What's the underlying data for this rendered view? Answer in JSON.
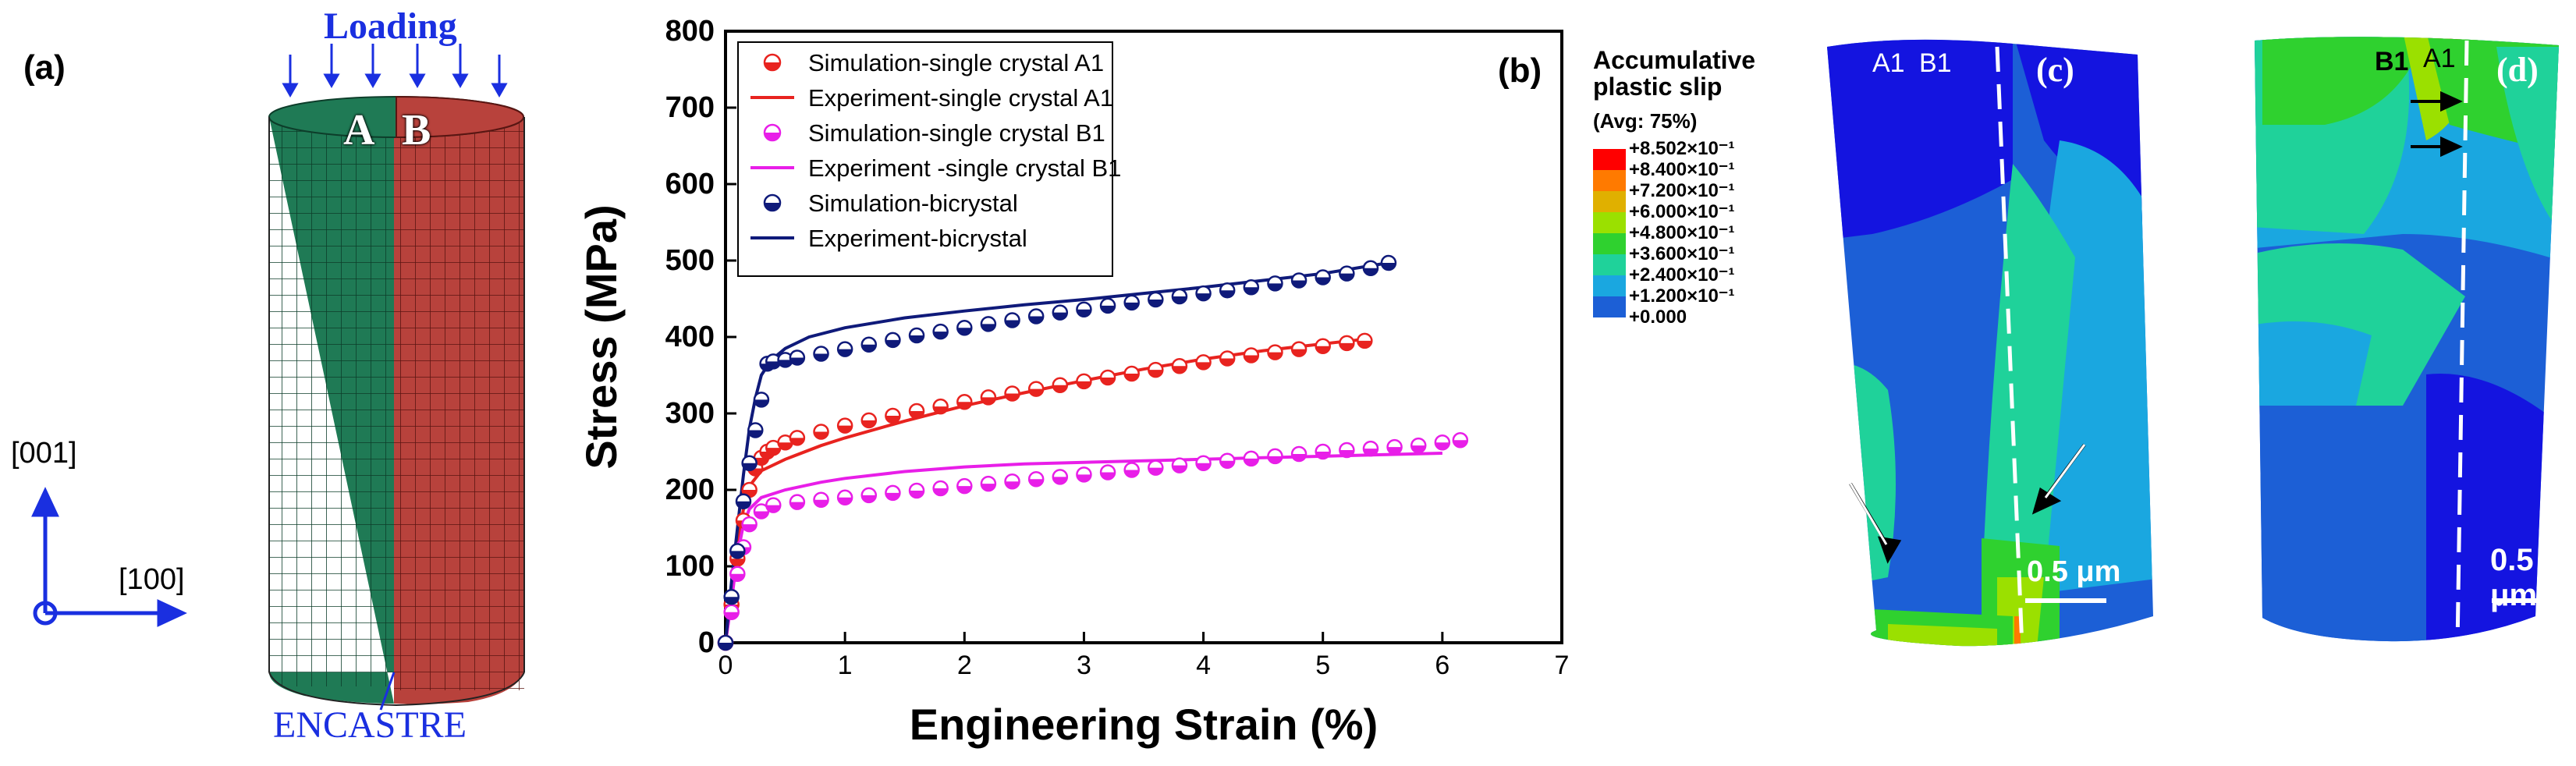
{
  "panel_a": {
    "label": "(a)",
    "loading_label": "Loading",
    "encastre_label": "ENCASTRE",
    "grain_a": "A",
    "grain_b": "B",
    "axis_vertical": "[001]",
    "axis_horizontal": "[100]",
    "colors": {
      "grain_a": "#1f7a55",
      "grain_b": "#b8423c",
      "annot": "#1a2fe0"
    }
  },
  "chart_data": {
    "type": "line",
    "panel_label": "(b)",
    "xlabel": "Engineering Strain (%)",
    "ylabel": "Stress (MPa)",
    "xlim": [
      0,
      7
    ],
    "ylim": [
      0,
      800
    ],
    "xticks": [
      "0",
      "1",
      "2",
      "3",
      "4",
      "5",
      "6",
      "7"
    ],
    "yticks": [
      "0",
      "100",
      "200",
      "300",
      "400",
      "500",
      "600",
      "700",
      "800"
    ],
    "legend": [
      {
        "name": "Simulation-single crystal A1",
        "kind": "marker",
        "color": "#e8231f"
      },
      {
        "name": "Experiment-single crystal A1",
        "kind": "line",
        "color": "#e8231f"
      },
      {
        "name": "Simulation-single crystal B1",
        "kind": "marker",
        "color": "#e81ee8"
      },
      {
        "name": "Experiment -single crystal B1",
        "kind": "line",
        "color": "#e81ee8"
      },
      {
        "name": "Simulation-bicrystal",
        "kind": "marker",
        "color": "#0f1a7a"
      },
      {
        "name": "Experiment-bicrystal",
        "kind": "line",
        "color": "#0f1a7a"
      }
    ],
    "series": [
      {
        "name": "Simulation-single crystal A1",
        "kind": "marker",
        "color": "#e8231f",
        "x": [
          0,
          0.05,
          0.1,
          0.15,
          0.2,
          0.25,
          0.3,
          0.35,
          0.4,
          0.5,
          0.6,
          0.8,
          1.0,
          1.2,
          1.4,
          1.6,
          1.8,
          2.0,
          2.2,
          2.4,
          2.6,
          2.8,
          3.0,
          3.2,
          3.4,
          3.6,
          3.8,
          4.0,
          4.2,
          4.4,
          4.6,
          4.8,
          5.0,
          5.2,
          5.35
        ],
        "y": [
          0,
          50,
          110,
          160,
          200,
          228,
          242,
          250,
          255,
          262,
          268,
          276,
          284,
          291,
          297,
          303,
          309,
          315,
          321,
          326,
          332,
          337,
          342,
          347,
          352,
          357,
          362,
          367,
          372,
          376,
          380,
          384,
          388,
          392,
          395
        ]
      },
      {
        "name": "Experiment-single crystal A1",
        "kind": "line",
        "color": "#e8231f",
        "x": [
          0,
          0.05,
          0.1,
          0.15,
          0.2,
          0.3,
          0.5,
          0.8,
          1.0,
          1.5,
          2.0,
          2.5,
          3.0,
          3.5,
          4.0,
          4.5,
          5.0,
          5.35
        ],
        "y": [
          0,
          60,
          130,
          175,
          205,
          225,
          240,
          258,
          268,
          290,
          310,
          327,
          343,
          358,
          371,
          382,
          391,
          397
        ]
      },
      {
        "name": "Simulation-single crystal B1",
        "kind": "marker",
        "color": "#e81ee8",
        "x": [
          0,
          0.05,
          0.1,
          0.15,
          0.2,
          0.3,
          0.4,
          0.6,
          0.8,
          1.0,
          1.2,
          1.4,
          1.6,
          1.8,
          2.0,
          2.2,
          2.4,
          2.6,
          2.8,
          3.0,
          3.2,
          3.4,
          3.6,
          3.8,
          4.0,
          4.2,
          4.4,
          4.6,
          4.8,
          5.0,
          5.2,
          5.4,
          5.6,
          5.8,
          6.0,
          6.15
        ],
        "y": [
          0,
          40,
          90,
          125,
          155,
          172,
          180,
          184,
          187,
          190,
          193,
          196,
          199,
          202,
          205,
          208,
          211,
          214,
          217,
          220,
          223,
          226,
          229,
          232,
          235,
          238,
          241,
          244,
          247,
          250,
          252,
          254,
          256,
          258,
          262,
          265
        ]
      },
      {
        "name": "Experiment -single crystal B1",
        "kind": "line",
        "color": "#e81ee8",
        "x": [
          0,
          0.05,
          0.1,
          0.15,
          0.2,
          0.3,
          0.5,
          0.8,
          1.0,
          1.5,
          2.0,
          2.5,
          3.0,
          3.5,
          4.0,
          4.5,
          5.0,
          5.5,
          6.0
        ],
        "y": [
          0,
          55,
          115,
          155,
          175,
          190,
          200,
          210,
          215,
          224,
          230,
          234,
          236,
          238,
          240,
          242,
          244,
          246,
          248
        ]
      },
      {
        "name": "Simulation-bicrystal",
        "kind": "marker",
        "color": "#0f1a7a",
        "x": [
          0,
          0.05,
          0.1,
          0.15,
          0.2,
          0.25,
          0.3,
          0.35,
          0.4,
          0.5,
          0.6,
          0.8,
          1.0,
          1.2,
          1.4,
          1.6,
          1.8,
          2.0,
          2.2,
          2.4,
          2.6,
          2.8,
          3.0,
          3.2,
          3.4,
          3.6,
          3.8,
          4.0,
          4.2,
          4.4,
          4.6,
          4.8,
          5.0,
          5.2,
          5.4,
          5.55
        ],
        "y": [
          0,
          60,
          120,
          185,
          235,
          278,
          318,
          365,
          368,
          370,
          373,
          378,
          384,
          390,
          396,
          402,
          407,
          412,
          417,
          422,
          427,
          432,
          436,
          441,
          445,
          449,
          453,
          457,
          461,
          465,
          470,
          474,
          478,
          483,
          490,
          497
        ]
      },
      {
        "name": "Experiment-bicrystal",
        "kind": "line",
        "color": "#0f1a7a",
        "x": [
          0,
          0.05,
          0.1,
          0.15,
          0.2,
          0.25,
          0.3,
          0.35,
          0.4,
          0.5,
          0.7,
          1.0,
          1.5,
          2.0,
          2.5,
          3.0,
          3.5,
          4.0,
          4.5,
          5.0,
          5.55
        ],
        "y": [
          0,
          80,
          150,
          220,
          280,
          320,
          350,
          362,
          372,
          385,
          400,
          412,
          425,
          434,
          442,
          449,
          457,
          465,
          474,
          483,
          497
        ]
      }
    ]
  },
  "legend_c": {
    "title_line1": "Accumulative",
    "title_line2": "plastic slip",
    "avg": "(Avg: 75%)",
    "levels": [
      "+8.502×10⁻¹",
      "+8.400×10⁻¹",
      "+7.200×10⁻¹",
      "+6.000×10⁻¹",
      "+4.800×10⁻¹",
      "+3.600×10⁻¹",
      "+2.400×10⁻¹",
      "+1.200×10⁻¹",
      "+0.000"
    ],
    "colors": [
      "#ff0000",
      "#ff7a00",
      "#e0b000",
      "#9be000",
      "#2fd12f",
      "#1fd29a",
      "#1aa7e0",
      "#1c5fd6",
      "#1414e0"
    ]
  },
  "panel_c": {
    "label": "(c)",
    "grain_left": "A1",
    "grain_right": "B1",
    "scale_bar": "0.5 μm"
  },
  "panel_d": {
    "label": "(d)",
    "grain_left": "B1",
    "grain_right": "A1",
    "scale_bar": "0.5 μm"
  }
}
